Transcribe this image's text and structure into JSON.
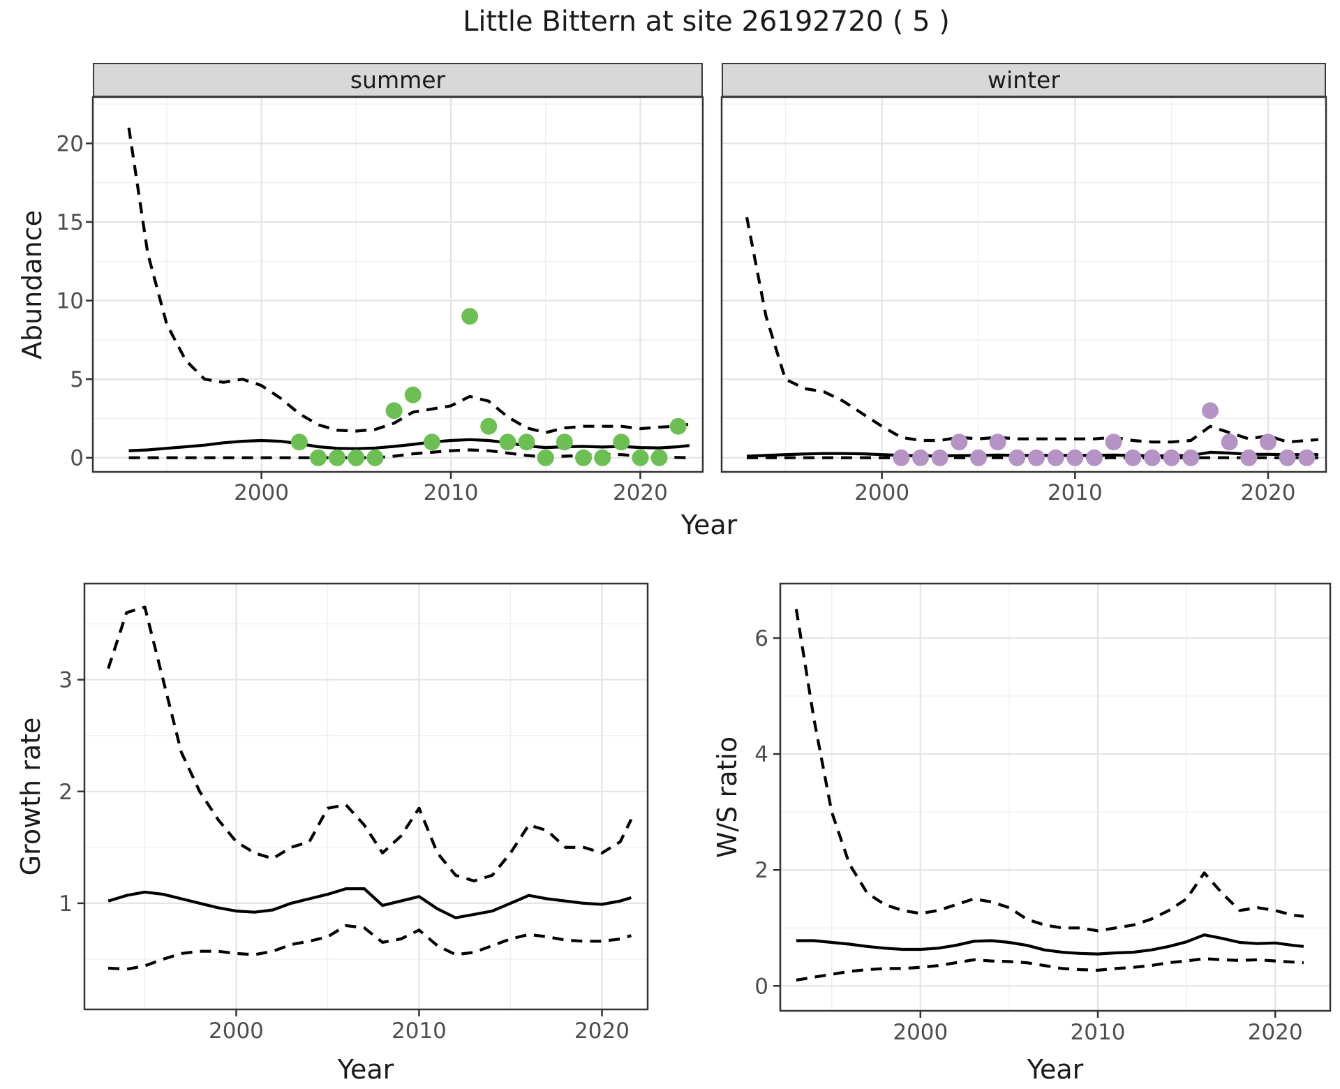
{
  "title": "Little Bittern at site 26192720 ( 5 )",
  "colors": {
    "summer_point": "#6cbf53",
    "winter_point": "#b593c4",
    "line": "#000000",
    "grid_major": "#e4e4e4",
    "grid_minor": "#f0f0f0",
    "panel_border": "#333333",
    "strip_bg": "#d8d8d8",
    "tick_text": "#4d4d4d"
  },
  "facets": [
    {
      "label": "summer"
    },
    {
      "label": "winter"
    }
  ],
  "axis_labels": {
    "abundance": "Abundance",
    "year": "Year",
    "growth": "Growth rate",
    "ws": "W/S ratio"
  },
  "chart_data": [
    {
      "id": "abundance-summer",
      "type": "line",
      "facet": "summer",
      "xlabel": "Year",
      "ylabel": "Abundance",
      "x_ticks": [
        2000,
        2010,
        2020
      ],
      "y_ticks": [
        0,
        5,
        10,
        15,
        20
      ],
      "xlim": [
        1991.1,
        2023.3
      ],
      "ylim": [
        -0.9,
        22.95
      ],
      "grid": true,
      "years": [
        1993,
        1994,
        1995,
        1996,
        1997,
        1998,
        1999,
        2000,
        2001,
        2002,
        2003,
        2004,
        2005,
        2006,
        2007,
        2008,
        2009,
        2010,
        2011,
        2012,
        2013,
        2014,
        2015,
        2016,
        2017,
        2018,
        2019,
        2020,
        2021,
        2022,
        2022.6
      ],
      "series": [
        {
          "name": "upper_ci",
          "style": "dashed",
          "y": [
            21,
            13,
            8.5,
            6.2,
            5.0,
            4.8,
            5.0,
            4.6,
            3.8,
            2.8,
            2.1,
            1.75,
            1.7,
            1.8,
            2.2,
            2.9,
            3.1,
            3.3,
            3.9,
            3.6,
            2.6,
            1.9,
            1.6,
            1.9,
            2.0,
            2.0,
            2.0,
            1.85,
            1.95,
            2.0,
            2.15
          ]
        },
        {
          "name": "mean",
          "style": "solid",
          "y": [
            0.45,
            0.5,
            0.6,
            0.7,
            0.8,
            0.95,
            1.05,
            1.1,
            1.05,
            0.9,
            0.7,
            0.6,
            0.58,
            0.62,
            0.72,
            0.85,
            1.0,
            1.1,
            1.15,
            1.1,
            0.95,
            0.75,
            0.65,
            0.7,
            0.72,
            0.68,
            0.72,
            0.65,
            0.63,
            0.7,
            0.78
          ]
        },
        {
          "name": "lower_ci",
          "style": "dashed",
          "y": [
            0,
            0,
            0,
            0,
            0,
            0,
            0,
            0,
            0,
            0,
            0,
            0,
            0,
            0,
            0.1,
            0.25,
            0.35,
            0.45,
            0.5,
            0.45,
            0.3,
            0.15,
            0.05,
            0.1,
            0.15,
            0.2,
            0.2,
            0.1,
            0.05,
            0.02,
            0
          ]
        },
        {
          "name": "observed",
          "style": "points",
          "color_key": "summer_point",
          "x": [
            2002,
            2003,
            2004,
            2005,
            2006,
            2007,
            2008,
            2009,
            2011,
            2012,
            2013,
            2014,
            2015,
            2016,
            2017,
            2018,
            2019,
            2020,
            2021,
            2022
          ],
          "y": [
            1,
            0,
            0,
            0,
            0,
            3,
            4,
            1,
            9,
            2,
            1,
            1,
            0,
            1,
            0,
            0,
            1,
            0,
            0,
            2
          ]
        }
      ]
    },
    {
      "id": "abundance-winter",
      "type": "line",
      "facet": "winter",
      "xlabel": "Year",
      "ylabel": "Abundance",
      "x_ticks": [
        2000,
        2010,
        2020
      ],
      "y_ticks": [
        0,
        5,
        10,
        15,
        20
      ],
      "xlim": [
        1991.7,
        2023.0
      ],
      "ylim": [
        -0.9,
        22.95
      ],
      "grid": true,
      "years": [
        1993,
        1994,
        1995,
        1996,
        1997,
        1998,
        1999,
        2000,
        2001,
        2002,
        2003,
        2004,
        2005,
        2006,
        2007,
        2008,
        2009,
        2010,
        2011,
        2012,
        2013,
        2014,
        2015,
        2016,
        2017,
        2018,
        2019,
        2020,
        2021,
        2022,
        2022.6
      ],
      "series": [
        {
          "name": "upper_ci",
          "style": "dashed",
          "y": [
            15.3,
            9.0,
            5.0,
            4.4,
            4.2,
            3.6,
            2.8,
            2.0,
            1.3,
            1.1,
            1.1,
            1.3,
            1.2,
            1.3,
            1.2,
            1.2,
            1.2,
            1.2,
            1.2,
            1.3,
            1.1,
            1.0,
            1.0,
            1.1,
            2.0,
            1.6,
            1.2,
            1.4,
            1.0,
            1.1,
            1.15
          ]
        },
        {
          "name": "mean",
          "style": "solid",
          "y": [
            0.1,
            0.15,
            0.2,
            0.24,
            0.27,
            0.27,
            0.25,
            0.2,
            0.15,
            0.12,
            0.12,
            0.14,
            0.15,
            0.17,
            0.15,
            0.15,
            0.15,
            0.15,
            0.15,
            0.17,
            0.15,
            0.13,
            0.12,
            0.15,
            0.35,
            0.3,
            0.22,
            0.22,
            0.2,
            0.2,
            0.2
          ]
        },
        {
          "name": "lower_ci",
          "style": "dashed",
          "y": [
            0,
            0,
            0,
            0,
            0,
            0,
            0,
            0,
            0,
            0,
            0,
            0,
            0,
            0,
            0,
            0,
            0,
            0,
            0,
            0,
            0,
            0,
            0,
            0,
            0,
            0,
            0,
            0,
            0,
            0,
            0
          ]
        },
        {
          "name": "observed",
          "style": "points",
          "color_key": "winter_point",
          "x": [
            2001,
            2002,
            2003,
            2004,
            2005,
            2006,
            2007,
            2008,
            2009,
            2010,
            2011,
            2012,
            2013,
            2014,
            2015,
            2016,
            2017,
            2018,
            2019,
            2020,
            2021,
            2022
          ],
          "y": [
            0,
            0,
            0,
            1,
            0,
            1,
            0,
            0,
            0,
            0,
            0,
            1,
            0,
            0,
            0,
            0,
            3,
            1,
            0,
            1,
            0,
            0
          ]
        }
      ]
    },
    {
      "id": "growth-rate",
      "type": "line",
      "facet": null,
      "xlabel": "Year",
      "ylabel": "Growth rate",
      "x_ticks": [
        2000,
        2010,
        2020
      ],
      "y_ticks": [
        1,
        2,
        3
      ],
      "xlim": [
        1991.7,
        2022.5
      ],
      "ylim": [
        0.05,
        3.86
      ],
      "grid": true,
      "years": [
        1993,
        1994,
        1995,
        1996,
        1997,
        1998,
        1999,
        2000,
        2001,
        2002,
        2003,
        2004,
        2005,
        2006,
        2007,
        2008,
        2009,
        2010,
        2011,
        2012,
        2013,
        2014,
        2015,
        2016,
        2017,
        2018,
        2019,
        2020,
        2021,
        2021.6
      ],
      "series": [
        {
          "name": "upper_ci",
          "style": "dashed",
          "y": [
            3.1,
            3.6,
            3.65,
            3.0,
            2.35,
            2.0,
            1.75,
            1.55,
            1.45,
            1.4,
            1.5,
            1.55,
            1.85,
            1.88,
            1.7,
            1.45,
            1.6,
            1.85,
            1.45,
            1.25,
            1.2,
            1.25,
            1.45,
            1.7,
            1.65,
            1.5,
            1.5,
            1.45,
            1.55,
            1.75
          ]
        },
        {
          "name": "mean",
          "style": "solid",
          "y": [
            1.02,
            1.07,
            1.1,
            1.08,
            1.04,
            1.0,
            0.96,
            0.93,
            0.92,
            0.94,
            1.0,
            1.04,
            1.08,
            1.13,
            1.13,
            0.98,
            1.02,
            1.06,
            0.95,
            0.87,
            0.9,
            0.93,
            1.0,
            1.07,
            1.04,
            1.02,
            1.0,
            0.99,
            1.02,
            1.05
          ]
        },
        {
          "name": "lower_ci",
          "style": "dashed",
          "y": [
            0.42,
            0.41,
            0.44,
            0.5,
            0.55,
            0.57,
            0.57,
            0.55,
            0.54,
            0.57,
            0.63,
            0.66,
            0.7,
            0.8,
            0.78,
            0.65,
            0.68,
            0.76,
            0.62,
            0.54,
            0.56,
            0.62,
            0.68,
            0.72,
            0.7,
            0.67,
            0.66,
            0.66,
            0.68,
            0.71
          ]
        }
      ]
    },
    {
      "id": "ws-ratio",
      "type": "line",
      "facet": null,
      "xlabel": "Year",
      "ylabel": "W/S ratio",
      "x_ticks": [
        2000,
        2010,
        2020
      ],
      "y_ticks": [
        0,
        2,
        4,
        6
      ],
      "xlim": [
        1992.1,
        2023.1
      ],
      "ylim": [
        -0.43,
        6.94
      ],
      "grid": true,
      "years": [
        1993,
        1994,
        1995,
        1996,
        1997,
        1998,
        1999,
        2000,
        2001,
        2002,
        2003,
        2004,
        2005,
        2006,
        2007,
        2008,
        2009,
        2010,
        2011,
        2012,
        2013,
        2014,
        2015,
        2016,
        2017,
        2018,
        2019,
        2020,
        2021,
        2021.6
      ],
      "series": [
        {
          "name": "upper_ci",
          "style": "dashed",
          "y": [
            6.5,
            4.6,
            3.0,
            2.1,
            1.6,
            1.4,
            1.3,
            1.25,
            1.3,
            1.4,
            1.5,
            1.45,
            1.35,
            1.15,
            1.05,
            1.0,
            1.0,
            0.95,
            1.0,
            1.05,
            1.15,
            1.3,
            1.5,
            1.95,
            1.6,
            1.3,
            1.35,
            1.3,
            1.22,
            1.2
          ]
        },
        {
          "name": "mean",
          "style": "solid",
          "y": [
            0.78,
            0.78,
            0.75,
            0.72,
            0.68,
            0.65,
            0.63,
            0.63,
            0.65,
            0.7,
            0.77,
            0.78,
            0.75,
            0.7,
            0.62,
            0.58,
            0.56,
            0.55,
            0.57,
            0.58,
            0.62,
            0.68,
            0.76,
            0.88,
            0.82,
            0.75,
            0.73,
            0.74,
            0.7,
            0.68
          ]
        },
        {
          "name": "lower_ci",
          "style": "dashed",
          "y": [
            0.1,
            0.15,
            0.2,
            0.25,
            0.28,
            0.3,
            0.3,
            0.32,
            0.35,
            0.4,
            0.45,
            0.43,
            0.42,
            0.4,
            0.35,
            0.3,
            0.28,
            0.27,
            0.3,
            0.32,
            0.35,
            0.4,
            0.43,
            0.47,
            0.45,
            0.44,
            0.45,
            0.43,
            0.41,
            0.4
          ]
        }
      ]
    }
  ]
}
